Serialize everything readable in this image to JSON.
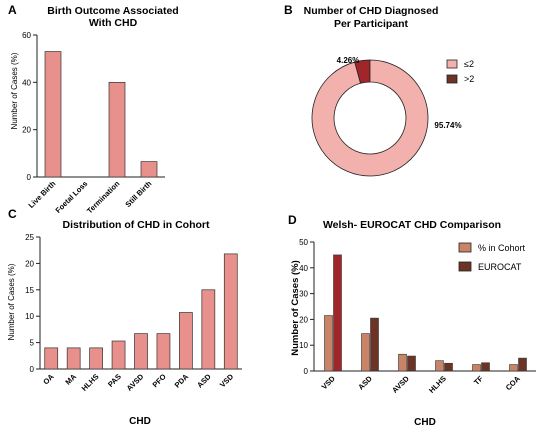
{
  "colors": {
    "salmon": "#e8908c",
    "salmon_light": "#f3b1ae",
    "dark_red": "#a1262a",
    "tan": "#c98366",
    "brown": "#6b3424",
    "axis": "#222222"
  },
  "chart_data": [
    {
      "panel": "A",
      "type": "bar",
      "title_lines": [
        "Birth Outcome Associated",
        "With CHD"
      ],
      "xlabel": "",
      "ylabel": "Number of Cases (%)",
      "ylim": [
        0,
        60
      ],
      "yticks": [
        0,
        20,
        40,
        60
      ],
      "categories": [
        "Live Birth",
        "Foetal Loss",
        "Termination",
        "Still Birth"
      ],
      "values": [
        53,
        0,
        40,
        6.5
      ]
    },
    {
      "panel": "B",
      "type": "pie",
      "title_lines": [
        "Number of CHD Diagnosed",
        "Per Participant"
      ],
      "slices": [
        {
          "label": "≤2",
          "value": 95.74,
          "label_text": "95.74%"
        },
        {
          "label": ">2",
          "value": 4.26,
          "label_text": "4.26%"
        }
      ]
    },
    {
      "panel": "C",
      "type": "bar",
      "title_lines": [
        "Distribution of CHD in Cohort"
      ],
      "xlabel": "CHD",
      "ylabel": "Number of Cases (%)",
      "ylim": [
        0,
        25
      ],
      "yticks": [
        0,
        5,
        10,
        15,
        20,
        25
      ],
      "categories": [
        "OA",
        "MA",
        "HLHS",
        "PAS",
        "AVSD",
        "PFO",
        "PDA",
        "ASD",
        "VSD"
      ],
      "values": [
        4.0,
        4.0,
        4.0,
        5.3,
        6.7,
        6.7,
        10.7,
        15.0,
        21.8
      ]
    },
    {
      "panel": "D",
      "type": "bar",
      "title_lines": [
        "Welsh- EUROCAT CHD Comparison"
      ],
      "xlabel": "CHD",
      "ylabel": "Number of Cases (%)",
      "ylim": [
        0,
        50
      ],
      "yticks": [
        0,
        10,
        20,
        30,
        40,
        50
      ],
      "categories": [
        "VSD",
        "ASD",
        "AVSD",
        "HLHS",
        "TF",
        "COA"
      ],
      "series": [
        {
          "name": "% in Cohort",
          "values": [
            21.5,
            14.5,
            6.5,
            4.0,
            2.5,
            2.5
          ]
        },
        {
          "name": "EUROCAT",
          "values": [
            45.0,
            20.5,
            5.8,
            3.0,
            3.2,
            5.0
          ]
        }
      ]
    }
  ]
}
